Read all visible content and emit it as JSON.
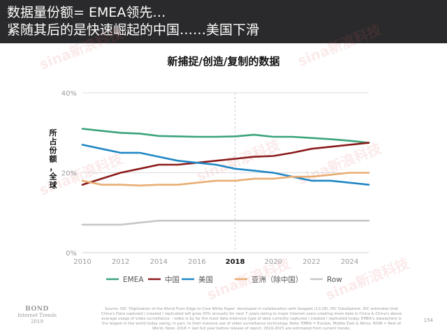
{
  "header": {
    "line1": "数据量份额= EMEA领先…",
    "line2": "紧随其后的是快速崛起的中国……美国下滑"
  },
  "watermark": "sina新浪科技",
  "chart_data": {
    "type": "line",
    "title": "新捕捉/创造/复制的数据",
    "ylabel": "所占份额，全球",
    "xlabel": "",
    "xlim": [
      2010,
      2025
    ],
    "ylim": [
      0,
      40
    ],
    "x_ticks": [
      2010,
      2012,
      2014,
      2016,
      2018,
      2020,
      2022,
      2024
    ],
    "x_tick_labels": [
      "2010",
      "2012",
      "2014",
      "2016",
      "2018",
      "2020",
      "2022",
      "2024"
    ],
    "y_ticks": [
      0,
      20,
      40
    ],
    "y_tick_labels": [
      "0%",
      "20%",
      "40%"
    ],
    "highlight_x": 2018,
    "grid": "horizontal",
    "legend_position": "bottom",
    "x": [
      2010,
      2011,
      2012,
      2013,
      2014,
      2015,
      2016,
      2017,
      2018,
      2019,
      2020,
      2021,
      2022,
      2023,
      2024,
      2025
    ],
    "series": [
      {
        "name": "EMEA",
        "color": "#3aa37a",
        "values": [
          31,
          30.5,
          30,
          29.8,
          29.2,
          29.1,
          29,
          29,
          29.1,
          29.5,
          29,
          29,
          28.7,
          28.4,
          28,
          27.5
        ]
      },
      {
        "name": "中国",
        "color": "#8b1a1a",
        "values": [
          17,
          18.5,
          20,
          21,
          22,
          22,
          22.5,
          23,
          23.5,
          24,
          24.2,
          25,
          26,
          26.5,
          27,
          27.5
        ]
      },
      {
        "name": "美国",
        "color": "#1f86c4",
        "values": [
          27,
          26,
          25,
          25,
          24,
          23,
          22.5,
          22,
          21,
          20.5,
          20,
          19,
          18,
          18,
          17.5,
          17
        ]
      },
      {
        "name": "亚洲（除中国）",
        "color": "#e8ad73",
        "values": [
          18,
          17,
          17,
          16.8,
          17,
          17,
          17.5,
          18,
          18,
          18.5,
          18.5,
          19,
          19,
          19.5,
          20,
          20
        ]
      },
      {
        "name": "Row",
        "color": "#c7c7c7",
        "values": [
          7,
          7,
          7,
          7.5,
          8,
          8,
          8,
          8,
          8,
          8,
          8,
          8,
          8,
          8,
          8,
          8
        ]
      }
    ]
  },
  "footer": {
    "logo_line1": "BOND",
    "logo_line2": "Internet Trends",
    "logo_line3": "2019",
    "source": "Source: IDC 'Digitization of the World From Edge to Core White Paper' developed in collaboration with Seagate (11/18), IDC DataSphere. IDC estimates that China's Data captured / created / replicated will grow 30% annually for next 7 years owing to major Internet users creating more data in China & China's above average usage of video surveillance – video is by far the most data-intensive type of data currently captured / created / replicated today. EMEA's datasphere is the largest in the world today owing, in part, to their massive use of video surveillance technology. Note: EMEA = Europe, Middle East & Africa. ROW = Rest of World. Note: 2018 = last full year before release of report. 2019-2025 are estimated from current trends.",
    "page": "154"
  }
}
